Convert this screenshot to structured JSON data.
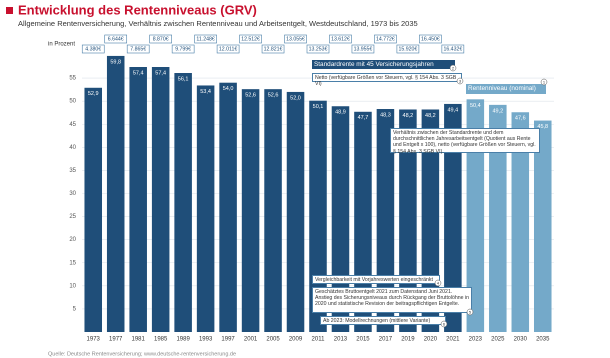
{
  "chart_data": {
    "type": "bar",
    "title": "Entwicklung des Rentenniveaus (GRV)",
    "subtitle": "Allgemeine Rentenversicherung, Verhältnis zwischen Rentenniveau und Arbeitsentgelt, Westdeutschland, 1973 bis 2035",
    "y_label": "in Prozent",
    "categories": [
      "1973",
      "1977",
      "1981",
      "1985",
      "1989",
      "1993",
      "1997",
      "2001",
      "2005",
      "2009",
      "2011",
      "2013",
      "2015",
      "2017",
      "2019",
      "2020",
      "2021",
      "2023",
      "2025",
      "2030",
      "2035"
    ],
    "values": [
      52.9,
      59.8,
      57.4,
      57.4,
      56.1,
      53.4,
      54.0,
      52.6,
      52.6,
      52.0,
      50.1,
      48.9,
      47.7,
      48.3,
      48.2,
      48.2,
      49.4,
      50.4,
      49.2,
      47.6,
      45.8
    ],
    "value_labels": [
      "52,9",
      "59,8",
      "57,4",
      "57,4",
      "56,1",
      "53,4",
      "54,0",
      "52,6",
      "52,6",
      "52,0",
      "50,1",
      "48,9",
      "47,7",
      "48,3",
      "48,2",
      "48,2",
      "49,4",
      "50,4",
      "49,2",
      "47,6",
      "45,8"
    ],
    "colors": [
      "#1f4e79",
      "#1f4e79",
      "#1f4e79",
      "#1f4e79",
      "#1f4e79",
      "#1f4e79",
      "#1f4e79",
      "#1f4e79",
      "#1f4e79",
      "#1f4e79",
      "#1f4e79",
      "#1f4e79",
      "#1f4e79",
      "#1f4e79",
      "#1f4e79",
      "#1f4e79",
      "#1f4e79",
      "#74a9c9",
      "#74a9c9",
      "#74a9c9",
      "#74a9c9"
    ],
    "entgelt_labels": [
      "4.380€",
      "6.644€",
      "7.865€",
      "8.870€",
      "9.799€",
      "11.248€",
      "12.011€",
      "12.512€",
      "12.821€",
      "13.055€",
      "13.253€",
      "13.612€",
      "13.955€",
      "14.772€",
      "15.920€",
      "16.450€",
      "16.432€",
      null,
      null,
      null,
      null
    ],
    "ylim": [
      0,
      60
    ],
    "yticks": [
      5,
      10,
      15,
      20,
      25,
      30,
      35,
      40,
      45,
      50,
      55
    ],
    "grid": true,
    "notes": [
      {
        "text": "Standardrente mit 45 Versicherungsjahren",
        "marker": "2"
      },
      {
        "text": "Netto (verfügbare Größen vor Steuern, vgl. § 154 Abs. 3 SGB VI)",
        "marker": "3"
      },
      {
        "text": "Rentenniveau (nominal)",
        "marker": "1"
      },
      {
        "text": "Verhältnis zwischen der Standardrente und dem durchschnittlichen Jahresarbeitsentgelt (Quotient aus Rente und Entgelt x 100), netto (verfügbare Größen vor Steuern, vgl. § 154 Abs. 3 SGB VI).",
        "marker": null
      },
      {
        "text": "Vergleichbarkeit mit Vorjahreswerten eingeschränkt",
        "marker": "4"
      },
      {
        "text": "Geschätztes Bruttoentgelt 2021 zum Datenstand Juni 2021. Anstieg des Sicherungsniveaus durch Rückgang der Bruttolöhne in 2020 und statistische Revision der beitragspflichtigen Entgelte.",
        "marker": "5"
      },
      {
        "text": "Ab 2023: Modellrechnungen (mittlere Variante)",
        "marker": "6"
      }
    ],
    "source": "Quelle: Deutsche Rentenversicherung; www.deutsche-rentenversicherung.de"
  }
}
